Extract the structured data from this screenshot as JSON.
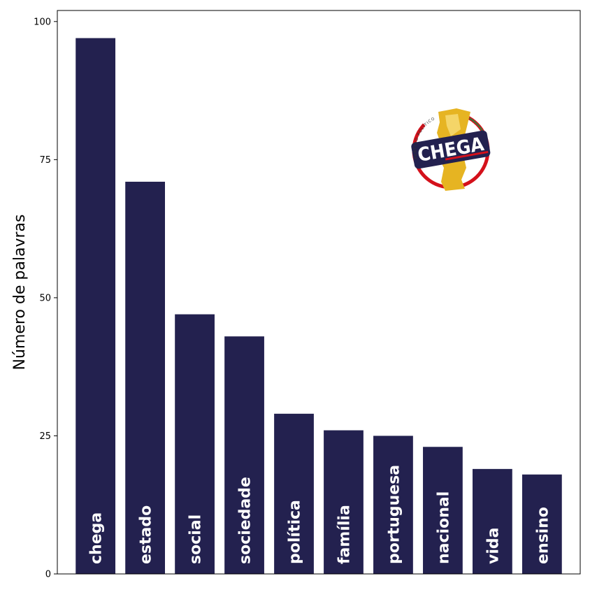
{
  "chart_data": {
    "type": "bar",
    "title": "",
    "xlabel": "",
    "ylabel": "Número de palavras",
    "ylim": [
      0,
      102
    ],
    "yticks": [
      0,
      25,
      50,
      75,
      100
    ],
    "grid": false,
    "bar_labels_inside": true,
    "categories": [
      "chega",
      "estado",
      "social",
      "sociedade",
      "política",
      "família",
      "portuguesa",
      "nacional",
      "vida",
      "ensino"
    ],
    "series": [
      {
        "values": [
          97,
          71,
          47,
          43,
          29,
          26,
          25,
          23,
          19,
          18
        ]
      }
    ],
    "bar_color": "#23214f",
    "logo": {
      "text": "CHEGA",
      "subtext": "PARTIDO POLÍTICO"
    }
  }
}
